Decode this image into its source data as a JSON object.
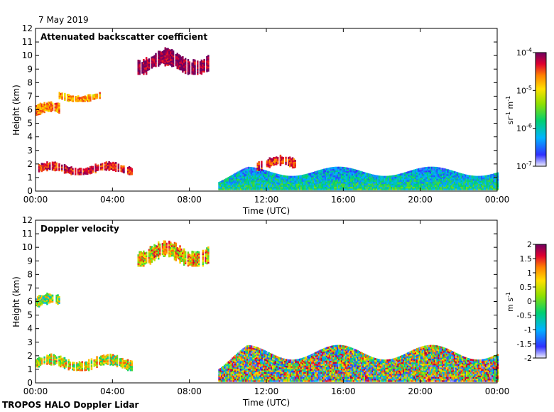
{
  "date_label": "7 May 2019",
  "footer": "TROPOS HALO Doppler Lidar",
  "chart_data": [
    {
      "type": "heatmap",
      "title": "Attenuated backscatter coefficient",
      "xlabel": "Time (UTC)",
      "ylabel": "Height (km)",
      "xlim": [
        0,
        24
      ],
      "ylim": [
        0,
        12
      ],
      "x_tick_labels": [
        "00:00",
        "04:00",
        "08:00",
        "12:00",
        "16:00",
        "20:00",
        "00:00"
      ],
      "y_ticks": [
        0,
        1,
        2,
        3,
        4,
        5,
        6,
        7,
        8,
        9,
        10,
        11,
        12
      ],
      "colorbar": {
        "label_parts": [
          "sr",
          "-1",
          " m",
          "-1"
        ],
        "scale": "log",
        "range": [
          1e-07,
          0.0001
        ],
        "tick_labels": [
          {
            "base": "10",
            "exp": "-7"
          },
          {
            "base": "10",
            "exp": "-6"
          },
          {
            "base": "10",
            "exp": "-5"
          },
          {
            "base": "10",
            "exp": "-4"
          }
        ]
      },
      "features": [
        {
          "name": "mid-level cloud",
          "t": [
            0.0,
            1.2
          ],
          "z": [
            5.4,
            6.8
          ],
          "log_value": -4.8
        },
        {
          "name": "mid-level cloud fragments",
          "t": [
            1.2,
            3.3
          ],
          "z": [
            6.6,
            7.5
          ],
          "log_value": -4.9
        },
        {
          "name": "cirrus",
          "t": [
            5.3,
            9.0
          ],
          "z": [
            8.6,
            10.8
          ],
          "log_value": -4.1
        },
        {
          "name": "low cloud layer",
          "t": [
            0.0,
            5.0
          ],
          "z": [
            1.2,
            2.3
          ],
          "log_value": -4.4
        },
        {
          "name": "boundary layer",
          "t": [
            9.5,
            24.0
          ],
          "z": [
            0.1,
            1.8
          ],
          "log_value": -5.9
        },
        {
          "name": "convective cloud tops",
          "t": [
            11.5,
            13.5
          ],
          "z": [
            1.5,
            2.8
          ],
          "log_value": -4.5
        }
      ]
    },
    {
      "type": "heatmap",
      "title": "Doppler velocity",
      "xlabel": "Time (UTC)",
      "ylabel": "Height (km)",
      "xlim": [
        0,
        24
      ],
      "ylim": [
        0,
        12
      ],
      "x_tick_labels": [
        "00:00",
        "04:00",
        "08:00",
        "12:00",
        "16:00",
        "20:00",
        "00:00"
      ],
      "y_ticks": [
        0,
        1,
        2,
        3,
        4,
        5,
        6,
        7,
        8,
        9,
        10,
        11,
        12
      ],
      "colorbar": {
        "label_parts": [
          "m s",
          "-1"
        ],
        "scale": "linear",
        "range": [
          -2,
          2
        ],
        "tick_labels": [
          "2",
          "1.5",
          "1",
          "0.5",
          "0",
          "-0.5",
          "-1",
          "-1.5",
          "-2"
        ]
      },
      "features": [
        {
          "name": "mid-level cloud",
          "t": [
            0.0,
            1.2
          ],
          "z": [
            5.4,
            6.8
          ],
          "value": 0.0
        },
        {
          "name": "cirrus",
          "t": [
            5.3,
            9.0
          ],
          "z": [
            8.6,
            10.8
          ],
          "value": 0.6
        },
        {
          "name": "low cloud layer",
          "t": [
            0.0,
            5.0
          ],
          "z": [
            0.9,
            2.3
          ],
          "value": 0.3
        },
        {
          "name": "boundary layer turbulence",
          "t": [
            9.5,
            24.0
          ],
          "z": [
            0.1,
            2.8
          ],
          "value": 0.0
        }
      ]
    }
  ]
}
